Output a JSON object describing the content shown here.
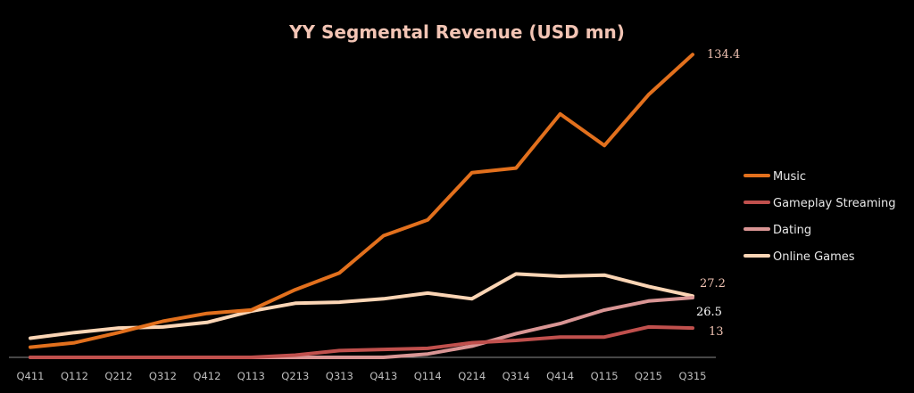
{
  "chart_data": {
    "type": "line",
    "title": "YY Segmental Revenue (USD mn)",
    "xlabel": "",
    "ylabel": "",
    "categories": [
      "Q411",
      "Q112",
      "Q212",
      "Q312",
      "Q412",
      "Q113",
      "Q213",
      "Q313",
      "Q413",
      "Q114",
      "Q214",
      "Q314",
      "Q414",
      "Q115",
      "Q215",
      "Q315"
    ],
    "ylim": [
      0,
      140
    ],
    "grid": false,
    "legend_position": "right",
    "series": [
      {
        "name": "Music",
        "color": "#e2701d",
        "values": [
          4.5,
          6.5,
          11,
          16,
          19.5,
          21,
          30,
          37.5,
          54,
          61,
          82,
          84,
          108,
          94,
          116.5,
          134.4
        ]
      },
      {
        "name": "Gameplay Streaming",
        "color": "#c0504d",
        "values": [
          0,
          0,
          0,
          0,
          0,
          0,
          1,
          3,
          3.5,
          4,
          6.5,
          7.5,
          9,
          9,
          13.5,
          13
        ]
      },
      {
        "name": "Dating",
        "color": "#d99594",
        "values": [
          0,
          0,
          0,
          0,
          0,
          0,
          0,
          0,
          0,
          1.5,
          5,
          10.5,
          15,
          21,
          25,
          26.5
        ]
      },
      {
        "name": "Online Games",
        "color": "#fbd5b5",
        "values": [
          8.5,
          11,
          13,
          13.5,
          15.5,
          20.5,
          24,
          24.5,
          26,
          28.5,
          26,
          37,
          36,
          36.5,
          31.5,
          27.2
        ]
      }
    ],
    "data_labels": [
      {
        "series": "Music",
        "text": "134.4",
        "color": "#f2c4b4"
      },
      {
        "series": "Online Games",
        "text": "27.2",
        "color": "#f2c4b4"
      },
      {
        "series": "Dating",
        "text": "26.5",
        "color": "#ffffff"
      },
      {
        "series": "Gameplay Streaming",
        "text": "13",
        "color": "#f2c4b4"
      }
    ]
  }
}
